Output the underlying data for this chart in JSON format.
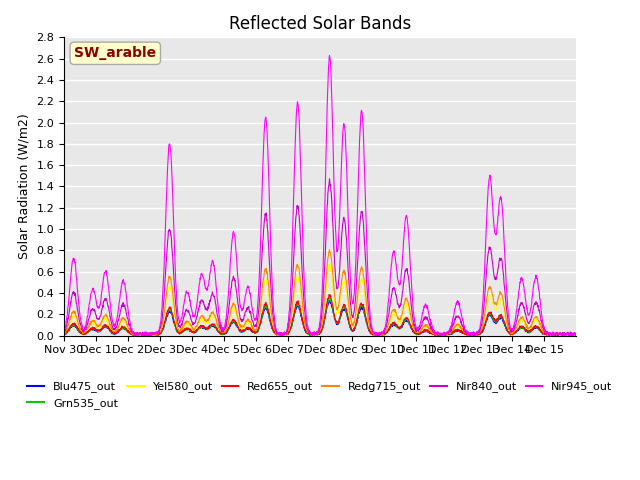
{
  "title": "Reflected Solar Bands",
  "ylabel": "Solar Radiation (W/m2)",
  "annotation": "SW_arable",
  "annotation_bg": "#ffffcc",
  "annotation_fg": "#8b0000",
  "ylim": [
    0,
    2.8
  ],
  "n_days": 16,
  "x_tick_labels": [
    "Nov 30",
    "Dec 1",
    "Dec 2",
    "Dec 3",
    "Dec 4",
    "Dec 5",
    "Dec 6",
    "Dec 7",
    "Dec 8",
    "Dec 9",
    "Dec 10",
    "Dec 11",
    "Dec 12",
    "Dec 13",
    "Dec 14",
    "Dec 15"
  ],
  "x_tick_positions": [
    0,
    1,
    2,
    3,
    4,
    5,
    6,
    7,
    8,
    9,
    10,
    11,
    12,
    13,
    14,
    15
  ],
  "series": [
    {
      "label": "Blu475_out",
      "color": "#0000ff",
      "scale": 0.12
    },
    {
      "label": "Grn535_out",
      "color": "#00cc00",
      "scale": 0.13
    },
    {
      "label": "Yel580_out",
      "color": "#ffff00",
      "scale": 0.25
    },
    {
      "label": "Red655_out",
      "color": "#ff0000",
      "scale": 0.14
    },
    {
      "label": "Redg715_out",
      "color": "#ff8800",
      "scale": 0.3
    },
    {
      "label": "Nir840_out",
      "color": "#cc00cc",
      "scale": 0.55
    },
    {
      "label": "Nir945_out",
      "color": "#ff00ff",
      "scale": 1.0
    }
  ],
  "background_color": "#e8e8e8",
  "grid_color": "#ffffff",
  "peak_heights": [
    0.71,
    0.42,
    0.59,
    0.5,
    1.79,
    0.4,
    0.55,
    0.67,
    0.95,
    0.44,
    2.04,
    2.18,
    2.6,
    1.97,
    2.09,
    0.77,
    1.1,
    0.27,
    0.3,
    1.46,
    1.26,
    0.52,
    0.54
  ],
  "peak_positions": [
    0.3,
    0.9,
    1.3,
    1.85,
    3.3,
    3.85,
    4.3,
    4.65,
    5.3,
    5.75,
    6.3,
    7.3,
    8.3,
    8.75,
    9.3,
    10.3,
    10.7,
    11.3,
    12.3,
    13.3,
    13.65,
    14.3,
    14.75
  ],
  "yticks": [
    0.0,
    0.2,
    0.4,
    0.6,
    0.8,
    1.0,
    1.2,
    1.4,
    1.6,
    1.8,
    2.0,
    2.2,
    2.4,
    2.6,
    2.8
  ]
}
